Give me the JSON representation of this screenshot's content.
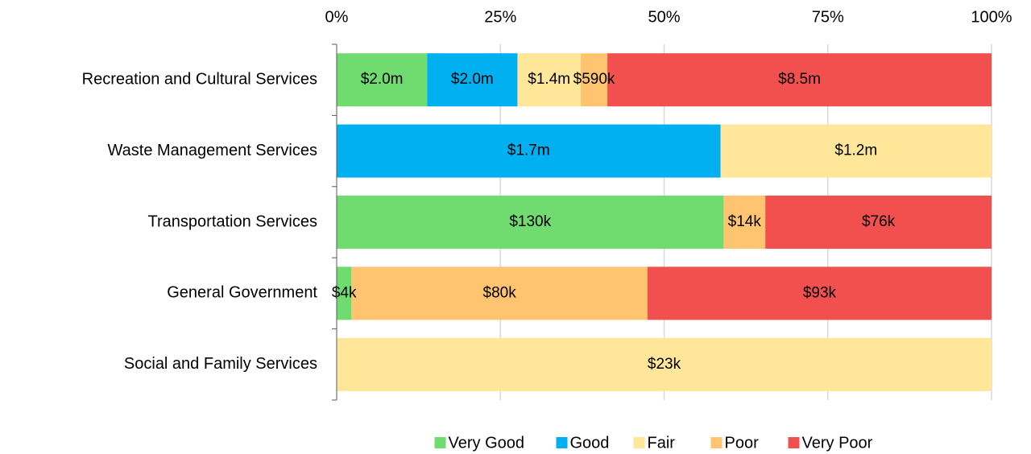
{
  "chart_data": {
    "type": "bar100",
    "categories": [
      "Recreation and Cultural Services",
      "Waste Management Services",
      "Transportation Services",
      "General Government",
      "Social and Family Services"
    ],
    "series": [
      {
        "name": "Very Good",
        "color": "#70db6f",
        "values": [
          2000000,
          null,
          130000,
          4000,
          null
        ],
        "value_labels": [
          "$2.0m",
          null,
          "$130k",
          "$4k",
          null
        ]
      },
      {
        "name": "Good",
        "color": "#00b0f0",
        "values": [
          2000000,
          1700000,
          null,
          null,
          null
        ],
        "value_labels": [
          "$2.0m",
          "$1.7m",
          null,
          null,
          null
        ]
      },
      {
        "name": "Fair",
        "color": "#ffe699",
        "values": [
          1400000,
          1200000,
          null,
          null,
          23000
        ],
        "value_labels": [
          "$1.4m",
          "$1.2m",
          null,
          null,
          "$23k"
        ]
      },
      {
        "name": "Poor",
        "color": "#ffc470",
        "values": [
          590000,
          null,
          14000,
          80000,
          null
        ],
        "value_labels": [
          "$590k",
          null,
          "$14k",
          "$80k",
          null
        ]
      },
      {
        "name": "Very Poor",
        "color": "#f24f4f",
        "values": [
          8500000,
          null,
          76000,
          93000,
          null
        ],
        "value_labels": [
          "$8.5m",
          null,
          "$76k",
          "$93k",
          null
        ]
      }
    ],
    "xlim": [
      0,
      100
    ],
    "xticks": [
      {
        "value": 0,
        "label": "0%"
      },
      {
        "value": 25,
        "label": "25%"
      },
      {
        "value": 50,
        "label": "50%"
      },
      {
        "value": 75,
        "label": "75%"
      },
      {
        "value": 100,
        "label": "100%"
      }
    ],
    "grid": true,
    "legend": "bottom"
  }
}
